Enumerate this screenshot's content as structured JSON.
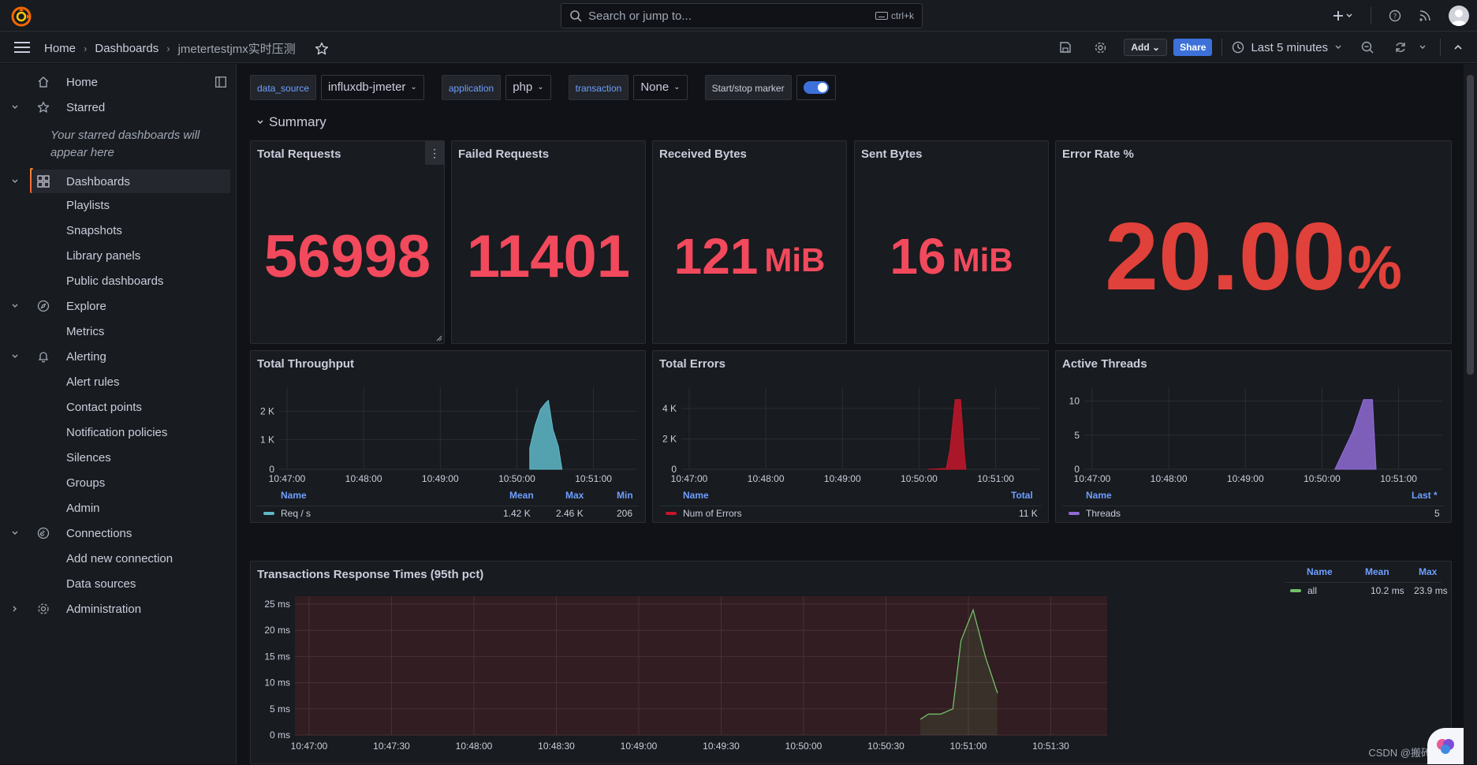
{
  "topbar": {
    "search_placeholder": "Search or jump to...",
    "search_shortcut": "ctrl+k"
  },
  "breadcrumb": {
    "home": "Home",
    "dashboards": "Dashboards",
    "current": "jmetertestjmx实时压测"
  },
  "toolbar": {
    "add_label": "Add",
    "share_label": "Share",
    "time_range": "Last 5 minutes"
  },
  "sidebar": {
    "items": [
      {
        "label": "Home"
      },
      {
        "label": "Starred"
      },
      {
        "label": "Dashboards"
      },
      {
        "label": "Playlists"
      },
      {
        "label": "Snapshots"
      },
      {
        "label": "Library panels"
      },
      {
        "label": "Public dashboards"
      },
      {
        "label": "Explore"
      },
      {
        "label": "Metrics"
      },
      {
        "label": "Alerting"
      },
      {
        "label": "Alert rules"
      },
      {
        "label": "Contact points"
      },
      {
        "label": "Notification policies"
      },
      {
        "label": "Silences"
      },
      {
        "label": "Groups"
      },
      {
        "label": "Admin"
      },
      {
        "label": "Connections"
      },
      {
        "label": "Add new connection"
      },
      {
        "label": "Data sources"
      },
      {
        "label": "Administration"
      }
    ],
    "starred_empty": "Your starred dashboards will appear here"
  },
  "variables": {
    "data_source_label": "data_source",
    "data_source_value": "influxdb-jmeter",
    "application_label": "application",
    "application_value": "php",
    "transaction_label": "transaction",
    "transaction_value": "None",
    "marker_label": "Start/stop marker"
  },
  "row": {
    "title": "Summary"
  },
  "stats": {
    "total_requests": {
      "title": "Total Requests",
      "value": "56998"
    },
    "failed_requests": {
      "title": "Failed Requests",
      "value": "11401"
    },
    "received_bytes": {
      "title": "Received Bytes",
      "value": "121",
      "unit": "MiB"
    },
    "sent_bytes": {
      "title": "Sent Bytes",
      "value": "16",
      "unit": "MiB"
    },
    "error_rate": {
      "title": "Error Rate %",
      "value": "20.00",
      "unit": "%"
    }
  },
  "throughput": {
    "title": "Total Throughput",
    "legend_headers": {
      "name": "Name",
      "mean": "Mean",
      "max": "Max",
      "min": "Min"
    },
    "series_name": "Req / s",
    "mean": "1.42 K",
    "max": "2.46 K",
    "min": "206",
    "y_ticks": [
      "2 K",
      "1 K",
      "0"
    ],
    "x_ticks": [
      "10:47:00",
      "10:48:00",
      "10:49:00",
      "10:50:00",
      "10:51:00"
    ],
    "color": "#5fb9c9"
  },
  "errors": {
    "title": "Total Errors",
    "legend_headers": {
      "name": "Name",
      "total": "Total"
    },
    "series_name": "Num of Errors",
    "total": "11 K",
    "y_ticks": [
      "4 K",
      "2 K",
      "0"
    ],
    "x_ticks": [
      "10:47:00",
      "10:48:00",
      "10:49:00",
      "10:50:00",
      "10:51:00"
    ],
    "color": "#c4162a"
  },
  "threads": {
    "title": "Active Threads",
    "legend_headers": {
      "name": "Name",
      "last": "Last *"
    },
    "series_name": "Threads",
    "last": "5",
    "y_ticks": [
      "10",
      "5",
      "0"
    ],
    "x_ticks": [
      "10:47:00",
      "10:48:00",
      "10:49:00",
      "10:50:00",
      "10:51:00"
    ],
    "color": "#8f6bd6"
  },
  "response": {
    "title": "Transactions Response Times (95th pct)",
    "legend_headers": {
      "name": "Name",
      "mean": "Mean",
      "max": "Max"
    },
    "series_name": "all",
    "mean": "10.2 ms",
    "max": "23.9 ms",
    "y_ticks": [
      "25 ms",
      "20 ms",
      "15 ms",
      "10 ms",
      "5 ms",
      "0 ms"
    ],
    "x_ticks": [
      "10:47:00",
      "10:47:30",
      "10:48:00",
      "10:48:30",
      "10:49:00",
      "10:49:30",
      "10:50:00",
      "10:50:30",
      "10:51:00",
      "10:51:30"
    ],
    "color": "#73bf69"
  },
  "watermark": "CSDN @搬砖的"
}
